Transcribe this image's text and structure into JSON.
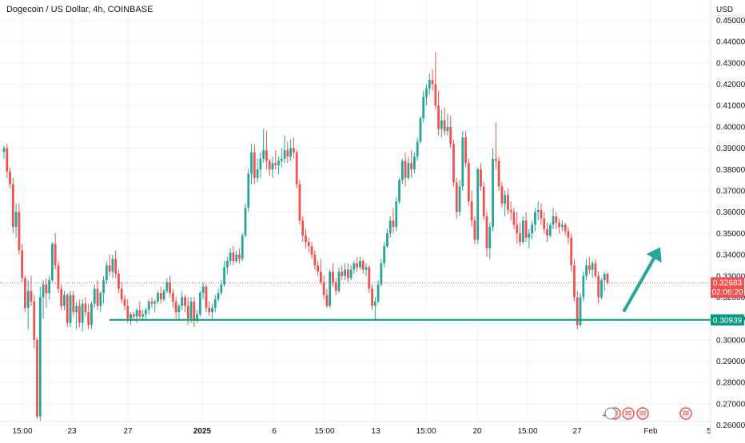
{
  "header": {
    "title": "Dogecoin / US Dollar, 4h, COINBASE",
    "currency": "USD"
  },
  "colors": {
    "up": "#26a69a",
    "down": "#ef5350",
    "support_line": "#089981",
    "arrow": "#26a69a",
    "grid": "#f0f3fa",
    "price_line": "#ef5350"
  },
  "chart_data": {
    "type": "candlestick",
    "ylim": [
      0.2535,
      0.4595
    ],
    "y_ticks": [
      "0.45000",
      "0.44000",
      "0.43000",
      "0.42000",
      "0.41000",
      "0.40000",
      "0.39000",
      "0.38000",
      "0.37000",
      "0.36000",
      "0.35000",
      "0.34000",
      "0.33000",
      "0.32000",
      "0.31000",
      "0.30000",
      "0.29000",
      "0.28000",
      "0.27000",
      "0.26000"
    ],
    "x_ticks": [
      "15:00",
      "23",
      "27",
      "2025",
      "6",
      "15:00",
      "13",
      "15:00",
      "20",
      "15:00",
      "27",
      "Feb",
      "5"
    ],
    "last_price": "0.32683",
    "countdown": "02:06:20",
    "support_level": "0.30939",
    "support_value": 0.30939,
    "arrow": {
      "from_value": 0.3138,
      "to_value": 0.3435,
      "direction": "up"
    },
    "event_icons": 5,
    "candles": [
      [
        0.3882,
        0.3912,
        0.385,
        0.39
      ],
      [
        0.39,
        0.392,
        0.376,
        0.379
      ],
      [
        0.379,
        0.381,
        0.371,
        0.373
      ],
      [
        0.373,
        0.376,
        0.35,
        0.353
      ],
      [
        0.353,
        0.364,
        0.348,
        0.36
      ],
      [
        0.36,
        0.364,
        0.34,
        0.342
      ],
      [
        0.342,
        0.345,
        0.327,
        0.329
      ],
      [
        0.329,
        0.33,
        0.313,
        0.315
      ],
      [
        0.315,
        0.328,
        0.305,
        0.323
      ],
      [
        0.323,
        0.33,
        0.316,
        0.318
      ],
      [
        0.318,
        0.321,
        0.296,
        0.3
      ],
      [
        0.3,
        0.301,
        0.263,
        0.264
      ],
      [
        0.264,
        0.325,
        0.262,
        0.32
      ],
      [
        0.32,
        0.328,
        0.31,
        0.326
      ],
      [
        0.326,
        0.329,
        0.315,
        0.322
      ],
      [
        0.322,
        0.33,
        0.319,
        0.328
      ],
      [
        0.328,
        0.346,
        0.327,
        0.345
      ],
      [
        0.345,
        0.35,
        0.333,
        0.335
      ],
      [
        0.335,
        0.337,
        0.322,
        0.324
      ],
      [
        0.324,
        0.326,
        0.314,
        0.316
      ],
      [
        0.316,
        0.323,
        0.314,
        0.321
      ],
      [
        0.321,
        0.322,
        0.306,
        0.308
      ],
      [
        0.308,
        0.323,
        0.306,
        0.321
      ],
      [
        0.321,
        0.323,
        0.311,
        0.313
      ],
      [
        0.313,
        0.318,
        0.305,
        0.316
      ],
      [
        0.316,
        0.319,
        0.306,
        0.308
      ],
      [
        0.308,
        0.319,
        0.304,
        0.317
      ],
      [
        0.317,
        0.32,
        0.311,
        0.313
      ],
      [
        0.313,
        0.317,
        0.305,
        0.307
      ],
      [
        0.307,
        0.318,
        0.305,
        0.317
      ],
      [
        0.317,
        0.326,
        0.315,
        0.324
      ],
      [
        0.324,
        0.328,
        0.314,
        0.316
      ],
      [
        0.316,
        0.323,
        0.313,
        0.322
      ],
      [
        0.322,
        0.33,
        0.317,
        0.328
      ],
      [
        0.328,
        0.337,
        0.326,
        0.335
      ],
      [
        0.335,
        0.34,
        0.33,
        0.332
      ],
      [
        0.332,
        0.34,
        0.329,
        0.338
      ],
      [
        0.338,
        0.342,
        0.329,
        0.331
      ],
      [
        0.331,
        0.333,
        0.322,
        0.324
      ],
      [
        0.324,
        0.327,
        0.317,
        0.319
      ],
      [
        0.319,
        0.321,
        0.314,
        0.316
      ],
      [
        0.316,
        0.319,
        0.308,
        0.31
      ],
      [
        0.31,
        0.313,
        0.307,
        0.312
      ],
      [
        0.312,
        0.313,
        0.309,
        0.311
      ],
      [
        0.311,
        0.315,
        0.308,
        0.314
      ],
      [
        0.314,
        0.318,
        0.31,
        0.311
      ],
      [
        0.311,
        0.314,
        0.309,
        0.312
      ],
      [
        0.312,
        0.315,
        0.31,
        0.314
      ],
      [
        0.314,
        0.319,
        0.312,
        0.318
      ],
      [
        0.318,
        0.32,
        0.315,
        0.317
      ],
      [
        0.317,
        0.319,
        0.313,
        0.318
      ],
      [
        0.318,
        0.323,
        0.317,
        0.322
      ],
      [
        0.322,
        0.325,
        0.317,
        0.319
      ],
      [
        0.319,
        0.324,
        0.318,
        0.323
      ],
      [
        0.323,
        0.329,
        0.322,
        0.327
      ],
      [
        0.327,
        0.33,
        0.32,
        0.322
      ],
      [
        0.322,
        0.324,
        0.315,
        0.318
      ],
      [
        0.318,
        0.32,
        0.31,
        0.313
      ],
      [
        0.313,
        0.317,
        0.309,
        0.316
      ],
      [
        0.316,
        0.323,
        0.314,
        0.32
      ],
      [
        0.32,
        0.321,
        0.313,
        0.316
      ],
      [
        0.316,
        0.32,
        0.307,
        0.31
      ],
      [
        0.31,
        0.32,
        0.308,
        0.318
      ],
      [
        0.318,
        0.32,
        0.306,
        0.309
      ],
      [
        0.309,
        0.314,
        0.308,
        0.312
      ],
      [
        0.312,
        0.323,
        0.311,
        0.322
      ],
      [
        0.322,
        0.327,
        0.319,
        0.325
      ],
      [
        0.325,
        0.326,
        0.313,
        0.315
      ],
      [
        0.315,
        0.318,
        0.311,
        0.313
      ],
      [
        0.313,
        0.317,
        0.31,
        0.315
      ],
      [
        0.315,
        0.321,
        0.313,
        0.319
      ],
      [
        0.319,
        0.324,
        0.318,
        0.322
      ],
      [
        0.322,
        0.328,
        0.321,
        0.326
      ],
      [
        0.326,
        0.337,
        0.325,
        0.334
      ],
      [
        0.334,
        0.339,
        0.331,
        0.337
      ],
      [
        0.337,
        0.343,
        0.335,
        0.341
      ],
      [
        0.341,
        0.344,
        0.335,
        0.337
      ],
      [
        0.337,
        0.342,
        0.336,
        0.34
      ],
      [
        0.34,
        0.343,
        0.336,
        0.338
      ],
      [
        0.338,
        0.35,
        0.337,
        0.349
      ],
      [
        0.349,
        0.364,
        0.348,
        0.362
      ],
      [
        0.362,
        0.38,
        0.36,
        0.378
      ],
      [
        0.378,
        0.392,
        0.373,
        0.388
      ],
      [
        0.388,
        0.392,
        0.373,
        0.376
      ],
      [
        0.376,
        0.385,
        0.374,
        0.38
      ],
      [
        0.38,
        0.388,
        0.376,
        0.385
      ],
      [
        0.385,
        0.399,
        0.383,
        0.389
      ],
      [
        0.389,
        0.398,
        0.38,
        0.384
      ],
      [
        0.384,
        0.385,
        0.377,
        0.38
      ],
      [
        0.38,
        0.386,
        0.376,
        0.383
      ],
      [
        0.383,
        0.389,
        0.38,
        0.382
      ],
      [
        0.382,
        0.386,
        0.378,
        0.384
      ],
      [
        0.384,
        0.39,
        0.381,
        0.385
      ],
      [
        0.385,
        0.396,
        0.383,
        0.389
      ],
      [
        0.389,
        0.393,
        0.383,
        0.386
      ],
      [
        0.386,
        0.394,
        0.384,
        0.39
      ],
      [
        0.39,
        0.395,
        0.385,
        0.388
      ],
      [
        0.388,
        0.389,
        0.371,
        0.373
      ],
      [
        0.373,
        0.375,
        0.354,
        0.356
      ],
      [
        0.356,
        0.358,
        0.346,
        0.349
      ],
      [
        0.349,
        0.352,
        0.343,
        0.346
      ],
      [
        0.346,
        0.348,
        0.341,
        0.344
      ],
      [
        0.344,
        0.346,
        0.338,
        0.34
      ],
      [
        0.34,
        0.342,
        0.333,
        0.335
      ],
      [
        0.335,
        0.337,
        0.33,
        0.332
      ],
      [
        0.332,
        0.338,
        0.326,
        0.327
      ],
      [
        0.327,
        0.33,
        0.319,
        0.321
      ],
      [
        0.321,
        0.324,
        0.315,
        0.316
      ],
      [
        0.316,
        0.333,
        0.315,
        0.332
      ],
      [
        0.332,
        0.336,
        0.325,
        0.327
      ],
      [
        0.327,
        0.329,
        0.321,
        0.323
      ],
      [
        0.323,
        0.334,
        0.322,
        0.332
      ],
      [
        0.332,
        0.335,
        0.328,
        0.33
      ],
      [
        0.33,
        0.336,
        0.328,
        0.333
      ],
      [
        0.333,
        0.336,
        0.327,
        0.329
      ],
      [
        0.329,
        0.335,
        0.328,
        0.333
      ],
      [
        0.333,
        0.337,
        0.331,
        0.336
      ],
      [
        0.336,
        0.339,
        0.332,
        0.334
      ],
      [
        0.334,
        0.339,
        0.333,
        0.337
      ],
      [
        0.337,
        0.338,
        0.331,
        0.333
      ],
      [
        0.333,
        0.336,
        0.33,
        0.334
      ],
      [
        0.334,
        0.335,
        0.322,
        0.324
      ],
      [
        0.324,
        0.326,
        0.314,
        0.316
      ],
      [
        0.316,
        0.32,
        0.309,
        0.318
      ],
      [
        0.318,
        0.328,
        0.317,
        0.326
      ],
      [
        0.326,
        0.338,
        0.325,
        0.336
      ],
      [
        0.336,
        0.346,
        0.334,
        0.344
      ],
      [
        0.344,
        0.352,
        0.343,
        0.35
      ],
      [
        0.35,
        0.358,
        0.348,
        0.356
      ],
      [
        0.356,
        0.362,
        0.35,
        0.353
      ],
      [
        0.353,
        0.367,
        0.351,
        0.365
      ],
      [
        0.365,
        0.376,
        0.364,
        0.375
      ],
      [
        0.375,
        0.385,
        0.373,
        0.384
      ],
      [
        0.384,
        0.388,
        0.372,
        0.376
      ],
      [
        0.376,
        0.386,
        0.375,
        0.383
      ],
      [
        0.383,
        0.389,
        0.376,
        0.38
      ],
      [
        0.38,
        0.388,
        0.378,
        0.386
      ],
      [
        0.386,
        0.395,
        0.384,
        0.393
      ],
      [
        0.393,
        0.405,
        0.392,
        0.404
      ],
      [
        0.404,
        0.417,
        0.402,
        0.414
      ],
      [
        0.414,
        0.42,
        0.41,
        0.418
      ],
      [
        0.418,
        0.425,
        0.415,
        0.422
      ],
      [
        0.422,
        0.427,
        0.417,
        0.42
      ],
      [
        0.42,
        0.435,
        0.408,
        0.41
      ],
      [
        0.41,
        0.417,
        0.396,
        0.399
      ],
      [
        0.399,
        0.408,
        0.395,
        0.403
      ],
      [
        0.403,
        0.409,
        0.396,
        0.398
      ],
      [
        0.398,
        0.406,
        0.396,
        0.4
      ],
      [
        0.4,
        0.405,
        0.39,
        0.392
      ],
      [
        0.392,
        0.394,
        0.372,
        0.374
      ],
      [
        0.374,
        0.376,
        0.357,
        0.36
      ],
      [
        0.36,
        0.375,
        0.358,
        0.372
      ],
      [
        0.372,
        0.398,
        0.37,
        0.395
      ],
      [
        0.395,
        0.398,
        0.381,
        0.383
      ],
      [
        0.383,
        0.385,
        0.363,
        0.365
      ],
      [
        0.365,
        0.37,
        0.353,
        0.356
      ],
      [
        0.356,
        0.358,
        0.345,
        0.347
      ],
      [
        0.347,
        0.381,
        0.345,
        0.38
      ],
      [
        0.38,
        0.383,
        0.37,
        0.372
      ],
      [
        0.372,
        0.374,
        0.356,
        0.358
      ],
      [
        0.358,
        0.36,
        0.339,
        0.343
      ],
      [
        0.343,
        0.355,
        0.338,
        0.353
      ],
      [
        0.353,
        0.39,
        0.351,
        0.385
      ],
      [
        0.385,
        0.402,
        0.38,
        0.384
      ],
      [
        0.384,
        0.386,
        0.37,
        0.372
      ],
      [
        0.372,
        0.374,
        0.362,
        0.364
      ],
      [
        0.364,
        0.37,
        0.358,
        0.368
      ],
      [
        0.368,
        0.371,
        0.359,
        0.361
      ],
      [
        0.361,
        0.365,
        0.356,
        0.36
      ],
      [
        0.36,
        0.362,
        0.352,
        0.354
      ],
      [
        0.354,
        0.36,
        0.345,
        0.35
      ],
      [
        0.35,
        0.355,
        0.344,
        0.346
      ],
      [
        0.346,
        0.358,
        0.345,
        0.356
      ],
      [
        0.356,
        0.36,
        0.346,
        0.348
      ],
      [
        0.348,
        0.352,
        0.343,
        0.35
      ],
      [
        0.35,
        0.356,
        0.347,
        0.354
      ],
      [
        0.354,
        0.362,
        0.351,
        0.36
      ],
      [
        0.36,
        0.365,
        0.356,
        0.361
      ],
      [
        0.361,
        0.364,
        0.354,
        0.357
      ],
      [
        0.357,
        0.36,
        0.35,
        0.352
      ],
      [
        0.352,
        0.355,
        0.346,
        0.349
      ],
      [
        0.349,
        0.355,
        0.348,
        0.354
      ],
      [
        0.354,
        0.362,
        0.352,
        0.358
      ],
      [
        0.358,
        0.36,
        0.352,
        0.355
      ],
      [
        0.355,
        0.357,
        0.35,
        0.353
      ],
      [
        0.353,
        0.356,
        0.351,
        0.354
      ],
      [
        0.354,
        0.355,
        0.349,
        0.351
      ],
      [
        0.351,
        0.353,
        0.345,
        0.348
      ],
      [
        0.348,
        0.35,
        0.332,
        0.335
      ],
      [
        0.335,
        0.338,
        0.318,
        0.32
      ],
      [
        0.32,
        0.323,
        0.305,
        0.307
      ],
      [
        0.307,
        0.322,
        0.306,
        0.32
      ],
      [
        0.32,
        0.332,
        0.318,
        0.33
      ],
      [
        0.33,
        0.338,
        0.328,
        0.335
      ],
      [
        0.335,
        0.339,
        0.331,
        0.333
      ],
      [
        0.333,
        0.337,
        0.329,
        0.336
      ],
      [
        0.336,
        0.338,
        0.329,
        0.33
      ],
      [
        0.33,
        0.332,
        0.317,
        0.32
      ],
      [
        0.32,
        0.329,
        0.319,
        0.328
      ],
      [
        0.328,
        0.332,
        0.323,
        0.331
      ],
      [
        0.331,
        0.332,
        0.326,
        0.3268
      ]
    ]
  }
}
